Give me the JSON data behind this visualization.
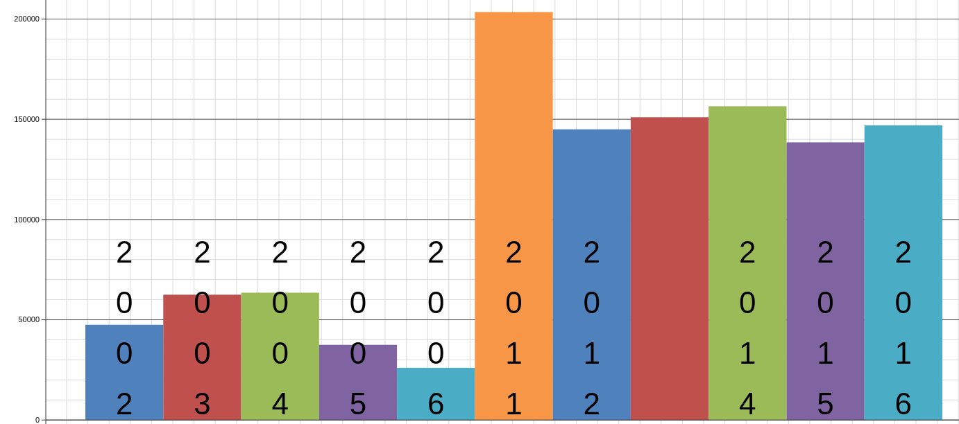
{
  "chart_data": {
    "type": "bar",
    "categories": [
      "2002",
      "2003",
      "2004",
      "2005",
      "2006",
      "2011",
      "2012",
      null,
      "2014",
      "2015",
      "2016"
    ],
    "values": [
      47500,
      62500,
      63500,
      37500,
      26000,
      203500,
      145000,
      151000,
      156500,
      138500,
      147000
    ],
    "colors": [
      "#4f81bd",
      "#c0504d",
      "#9bbb59",
      "#8064a2",
      "#4bacc6",
      "#f79646",
      "#4f81bd",
      "#c0504d",
      "#9bbb59",
      "#8064a2",
      "#4bacc6"
    ],
    "ylim": [
      -2000,
      209500
    ],
    "yticks": [
      0,
      50000,
      100000,
      150000,
      200000
    ],
    "grid": true
  }
}
